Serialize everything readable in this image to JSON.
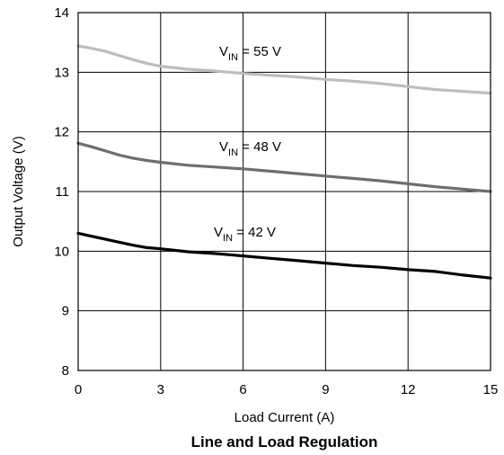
{
  "chart_data": {
    "type": "line",
    "title": "Line and Load Regulation",
    "xlabel": "Load Current (A)",
    "ylabel": "Output Voltage (V)",
    "xlim": [
      0,
      15
    ],
    "ylim": [
      8,
      14
    ],
    "xticks": [
      0,
      3,
      6,
      9,
      12,
      15
    ],
    "yticks": [
      8,
      9,
      10,
      11,
      12,
      13,
      14
    ],
    "grid": true,
    "series": [
      {
        "name": "VIN = 55 V",
        "label_main": "V",
        "label_sub": "IN",
        "label_rest": " = 55 V",
        "color": "#bdbdbd",
        "x": [
          0,
          0.5,
          1,
          1.5,
          2,
          2.5,
          3,
          4,
          5,
          6,
          7,
          8,
          9,
          10,
          11,
          12,
          13,
          14,
          15
        ],
        "y": [
          13.44,
          13.4,
          13.35,
          13.28,
          13.21,
          13.15,
          13.1,
          13.05,
          13.02,
          12.98,
          12.95,
          12.92,
          12.88,
          12.85,
          12.81,
          12.76,
          12.71,
          12.68,
          12.65
        ]
      },
      {
        "name": "VIN = 48 V",
        "label_main": "V",
        "label_sub": "IN",
        "label_rest": " = 48 V",
        "color": "#6e6e6e",
        "x": [
          0,
          0.5,
          1,
          1.5,
          2,
          2.5,
          3,
          4,
          5,
          6,
          7,
          8,
          9,
          10,
          11,
          12,
          13,
          14,
          15
        ],
        "y": [
          11.81,
          11.75,
          11.68,
          11.61,
          11.56,
          11.52,
          11.49,
          11.44,
          11.41,
          11.38,
          11.34,
          11.3,
          11.26,
          11.22,
          11.18,
          11.13,
          11.08,
          11.04,
          11.0
        ]
      },
      {
        "name": "VIN = 42 V",
        "label_main": "V",
        "label_sub": "IN",
        "label_rest": " = 42 V",
        "color": "#000000",
        "x": [
          0,
          0.5,
          1,
          1.5,
          2,
          2.5,
          3,
          4,
          5,
          6,
          7,
          8,
          9,
          10,
          11,
          12,
          13,
          14,
          15
        ],
        "y": [
          10.3,
          10.25,
          10.2,
          10.15,
          10.1,
          10.06,
          10.04,
          9.99,
          9.96,
          9.92,
          9.88,
          9.84,
          9.8,
          9.76,
          9.73,
          9.69,
          9.66,
          9.6,
          9.55
        ]
      }
    ]
  }
}
